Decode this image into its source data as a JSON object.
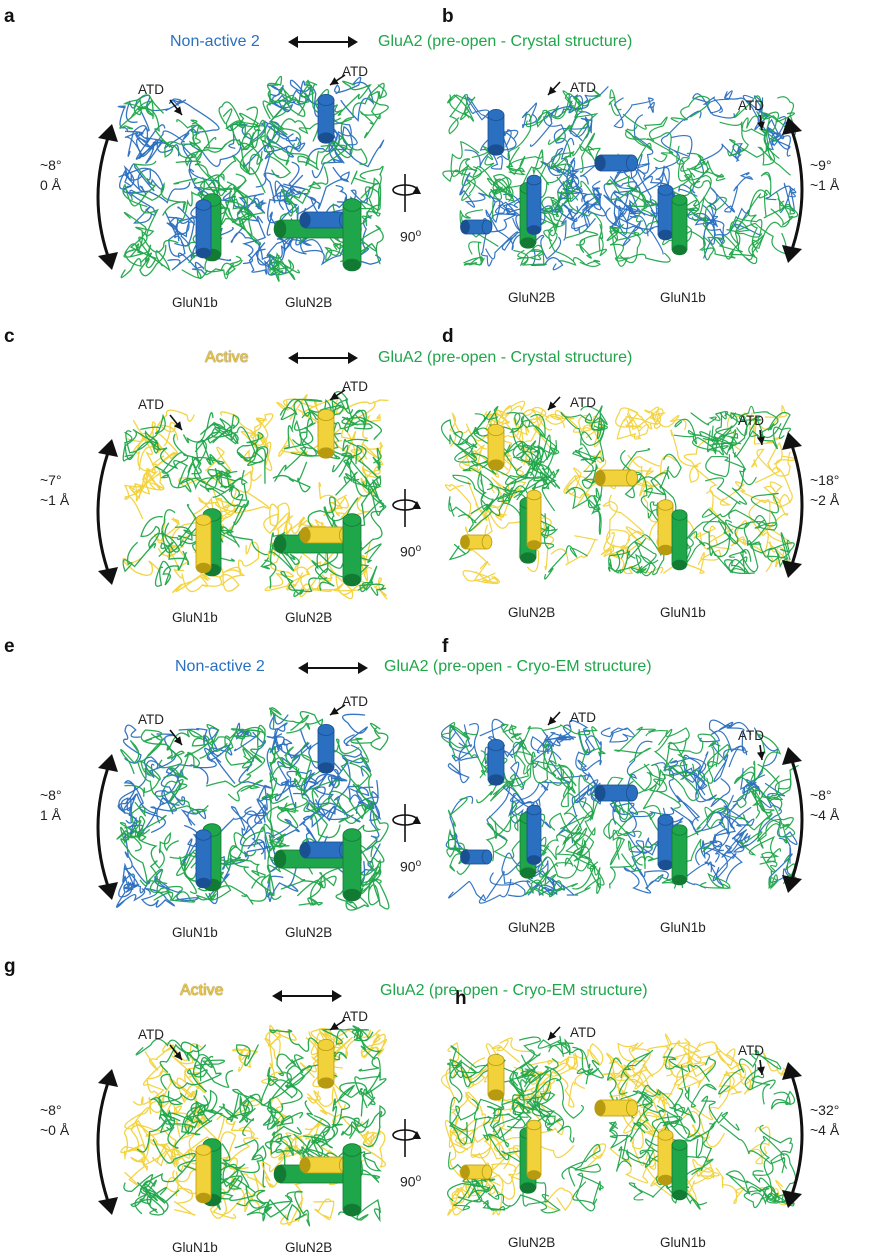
{
  "colors": {
    "glua2": "#1fa64a",
    "non_active": "#2a6fc0",
    "active": "#f2d23a"
  },
  "rows": [
    {
      "left_letter": "a",
      "right_letter": "b",
      "left_header": "Non-active 2",
      "left_header_style": "blue",
      "right_header": "GluA2 (pre-open - Crystal structure)",
      "left_angle_deg": "~8°",
      "left_shift": "0 Å",
      "right_angle_deg": "~9°",
      "right_shift": "~1 Å",
      "atd": "ATD",
      "rotation": "90",
      "rotation_sup": "o",
      "left_labels": [
        "GluN1b",
        "GluN2B"
      ],
      "right_labels": [
        "GluN2B",
        "GluN1b"
      ]
    },
    {
      "left_letter": "c",
      "right_letter": "d",
      "left_header": "Active",
      "left_header_style": "active",
      "right_header": "GluA2 (pre-open - Crystal structure)",
      "left_angle_deg": "~7°",
      "left_shift": "~1 Å",
      "right_angle_deg": "~18°",
      "right_shift": "~2 Å",
      "atd": "ATD",
      "rotation": "90",
      "rotation_sup": "o",
      "left_labels": [
        "GluN1b",
        "GluN2B"
      ],
      "right_labels": [
        "GluN2B",
        "GluN1b"
      ]
    },
    {
      "left_letter": "e",
      "right_letter": "f",
      "left_header": "Non-active 2",
      "left_header_style": "blue",
      "right_header": "GluA2 (pre-open - Cryo-EM structure)",
      "left_angle_deg": "~8°",
      "left_shift": "1 Å",
      "right_angle_deg": "~8°",
      "right_shift": "~4 Å",
      "atd": "ATD",
      "rotation": "90",
      "rotation_sup": "o",
      "left_labels": [
        "GluN1b",
        "GluN2B"
      ],
      "right_labels": [
        "GluN2B",
        "GluN1b"
      ]
    },
    {
      "left_letter": "g",
      "right_letter": "h",
      "left_header": "Active",
      "left_header_style": "active",
      "right_header": "GluA2 (pre-open - Cryo-EM structure)",
      "left_angle_deg": "~8°",
      "left_shift": "~0 Å",
      "right_angle_deg": "~32°",
      "right_shift": "~4 Å",
      "atd": "ATD",
      "rotation": "90",
      "rotation_sup": "o",
      "left_labels": [
        "GluN1b",
        "GluN2B"
      ],
      "right_labels": [
        "GluN2B",
        "GluN1b"
      ]
    }
  ]
}
